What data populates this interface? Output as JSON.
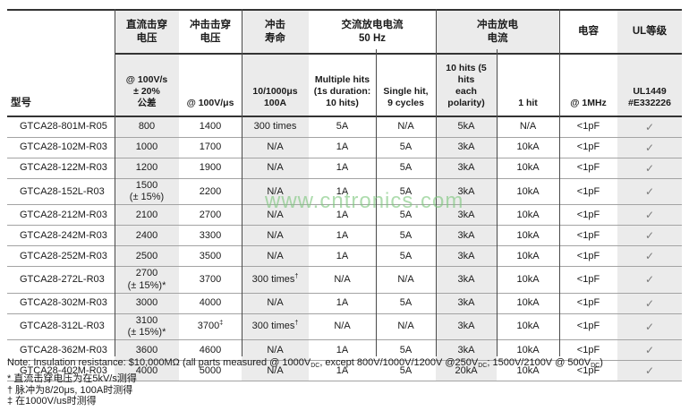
{
  "watermark": "www.cntronics.com",
  "colors": {
    "column_shade": "#ebebeb",
    "dark_rule": "#333333",
    "row_rule": "#a3a3a3",
    "watermark_green": "#7dc67d",
    "checkmark_gray": "#7a7a7a"
  },
  "table": {
    "model_header": "型号",
    "groups": [
      {
        "label": "直流击穿\n电压",
        "span": 1
      },
      {
        "label": "冲击击穿\n电压",
        "span": 1
      },
      {
        "label": "冲击\n寿命",
        "span": 1
      },
      {
        "label": "交流放电电流\n50 Hz",
        "span": 2
      },
      {
        "label": "冲击放电\n电流",
        "span": 2
      },
      {
        "label": "电容",
        "span": 1
      },
      {
        "label": "UL等级",
        "span": 1
      }
    ],
    "subheaders": [
      "@ 100V/s\n± 20%\n公差",
      "@ 100V/μs",
      "10/1000μs\n100A",
      "Multiple hits\n(1s duration:\n10 hits)",
      "Single hit,\n9 cycles",
      "10 hits (5 hits\neach polarity)",
      "1 hit",
      "@ 1MHz",
      "UL1449\n#E332226"
    ],
    "rows": [
      {
        "model": "GTCA28-801M-R05",
        "cells": [
          "800",
          "1400",
          "300 times",
          "5A",
          "N/A",
          "5kA",
          "N/A",
          "<1pF",
          "✓"
        ]
      },
      {
        "model": "GTCA28-102M-R03",
        "cells": [
          "1000",
          "1700",
          "N/A",
          "1A",
          "5A",
          "3kA",
          "10kA",
          "<1pF",
          "✓"
        ]
      },
      {
        "model": "GTCA28-122M-R03",
        "cells": [
          "1200",
          "1900",
          "N/A",
          "1A",
          "5A",
          "3kA",
          "10kA",
          "<1pF",
          "✓"
        ]
      },
      {
        "model": "GTCA28-152L-R03",
        "cells": [
          "1500\n(± 15%)",
          "2200",
          "N/A",
          "1A",
          "5A",
          "3kA",
          "10kA",
          "<1pF",
          "✓"
        ]
      },
      {
        "model": "GTCA28-212M-R03",
        "cells": [
          "2100",
          "2700",
          "N/A",
          "1A",
          "5A",
          "3kA",
          "10kA",
          "<1pF",
          "✓"
        ]
      },
      {
        "model": "GTCA28-242M-R03",
        "cells": [
          "2400",
          "3300",
          "N/A",
          "1A",
          "5A",
          "3kA",
          "10kA",
          "<1pF",
          "✓"
        ]
      },
      {
        "model": "GTCA28-252M-R03",
        "cells": [
          "2500",
          "3500",
          "N/A",
          "1A",
          "5A",
          "3kA",
          "10kA",
          "<1pF",
          "✓"
        ]
      },
      {
        "model": "GTCA28-272L-R03",
        "cells": [
          "2700\n(± 15%)*",
          "3700",
          "300 times†",
          "N/A",
          "N/A",
          "3kA",
          "10kA",
          "<1pF",
          "✓"
        ]
      },
      {
        "model": "GTCA28-302M-R03",
        "cells": [
          "3000",
          "4000",
          "N/A",
          "1A",
          "5A",
          "3kA",
          "10kA",
          "<1pF",
          "✓"
        ]
      },
      {
        "model": "GTCA28-312L-R03",
        "cells": [
          "3100\n(± 15%)*",
          "3700‡",
          "300 times†",
          "N/A",
          "N/A",
          "3kA",
          "10kA",
          "<1pF",
          "✓"
        ]
      },
      {
        "model": "GTCA28-362M-R03",
        "cells": [
          "3600",
          "4600",
          "N/A",
          "1A",
          "5A",
          "3kA",
          "10kA",
          "<1pF",
          "✓"
        ]
      },
      {
        "model": "GTCA28-402M-R03",
        "cells": [
          "4000",
          "5000",
          "N/A",
          "1A",
          "5A",
          "20kA",
          "10kA",
          "<1pF",
          "✓"
        ]
      }
    ]
  },
  "notes": {
    "insulation_note_segments": [
      {
        "text": "Note: Insulation resistance: $10,000MΩ (all parts measured @ 1000V"
      },
      {
        "text": "DC",
        "sub": true
      },
      {
        "text": ", except 800V/1000V/1200V @250V"
      },
      {
        "text": "DC",
        "sub": true
      },
      {
        "text": "; 1500V/2100V @ 500V"
      },
      {
        "text": "DC",
        "sub": true
      },
      {
        "text": ")"
      }
    ],
    "footnotes": [
      "* 直流击穿电压为在5kV/s测得",
      "† 脉冲为8/20μs, 100A时测得",
      "‡ 在1000V/us时测得"
    ]
  }
}
